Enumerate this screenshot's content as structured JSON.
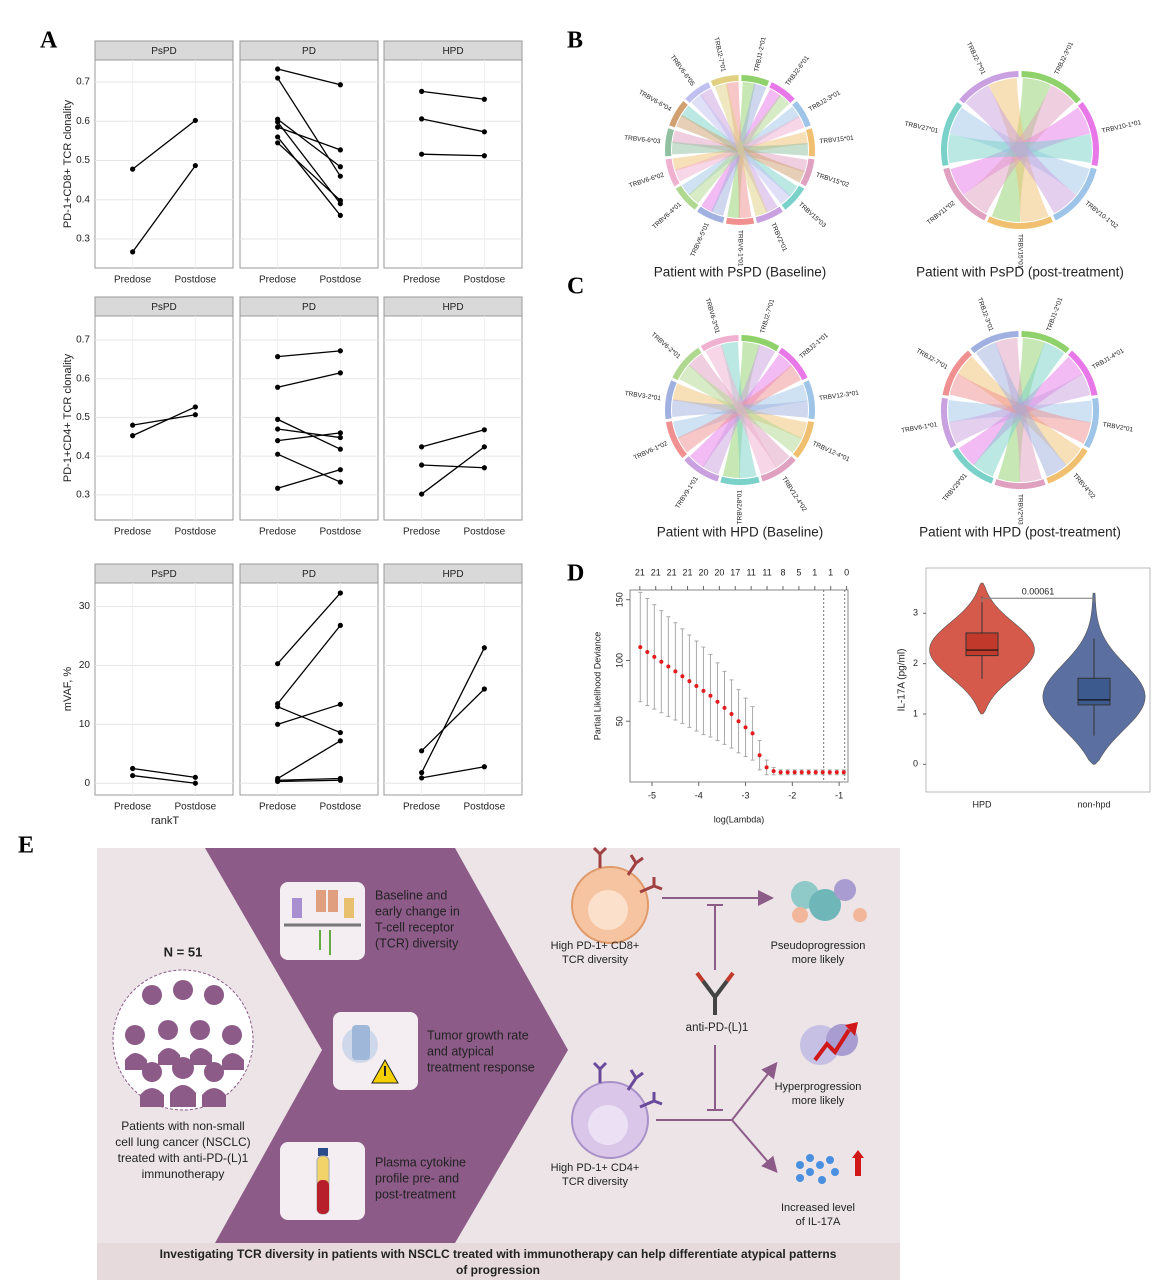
{
  "panels": {
    "a": "A",
    "b": "B",
    "c": "C",
    "d": "D",
    "e": "E"
  },
  "chart_data": [
    {
      "type": "paired-line",
      "ylabel": "PD-1+CD8+ TCR clonality",
      "categories": [
        "Predose",
        "Postdose"
      ],
      "ylim": [
        0.226,
        0.756
      ],
      "yticks": [
        0.3,
        0.4,
        0.5,
        0.6,
        0.7
      ],
      "grid": true,
      "color": "#000000",
      "facets": [
        {
          "title": "PsPD",
          "pairs": [
            [
              0.478,
              0.602
            ],
            [
              0.267,
              0.487
            ]
          ]
        },
        {
          "title": "PD",
          "pairs": [
            [
              0.733,
              0.693
            ],
            [
              0.71,
              0.46
            ],
            [
              0.605,
              0.484
            ],
            [
              0.598,
              0.39
            ],
            [
              0.585,
              0.527
            ],
            [
              0.56,
              0.36
            ],
            [
              0.545,
              0.398
            ]
          ]
        },
        {
          "title": "HPD",
          "pairs": [
            [
              0.676,
              0.656
            ],
            [
              0.606,
              0.573
            ],
            [
              0.516,
              0.512
            ]
          ]
        }
      ]
    },
    {
      "type": "paired-line",
      "ylabel": "PD-1+CD4+ TCR clonality",
      "categories": [
        "Predose",
        "Postdose"
      ],
      "ylim": [
        0.235,
        0.762
      ],
      "yticks": [
        0.3,
        0.4,
        0.5,
        0.6,
        0.7
      ],
      "grid": true,
      "color": "#000000",
      "facets": [
        {
          "title": "PsPD",
          "pairs": [
            [
              0.48,
              0.507
            ],
            [
              0.453,
              0.527
            ]
          ]
        },
        {
          "title": "PD",
          "pairs": [
            [
              0.657,
              0.672
            ],
            [
              0.578,
              0.615
            ],
            [
              0.495,
              0.418
            ],
            [
              0.47,
              0.448
            ],
            [
              0.44,
              0.46
            ],
            [
              0.405,
              0.333
            ],
            [
              0.317,
              0.365
            ]
          ]
        },
        {
          "title": "HPD",
          "pairs": [
            [
              0.424,
              0.468
            ],
            [
              0.377,
              0.37
            ],
            [
              0.302,
              0.424
            ]
          ]
        }
      ]
    },
    {
      "type": "paired-line",
      "ylabel": "mVAF, %",
      "xlabel": "rankT",
      "categories": [
        "Predose",
        "Postdose"
      ],
      "ylim": [
        -2,
        34
      ],
      "yticks": [
        0,
        10,
        20,
        30
      ],
      "grid": true,
      "color": "#000000",
      "facets": [
        {
          "title": "PsPD",
          "pairs": [
            [
              2.5,
              1.0
            ],
            [
              1.3,
              0.0
            ]
          ]
        },
        {
          "title": "PD",
          "pairs": [
            [
              20.3,
              32.3
            ],
            [
              13.5,
              26.8
            ],
            [
              13.0,
              8.6
            ],
            [
              10.0,
              13.4
            ],
            [
              0.8,
              7.2
            ],
            [
              0.5,
              0.8
            ],
            [
              0.3,
              0.5
            ]
          ]
        },
        {
          "title": "HPD",
          "pairs": [
            [
              5.5,
              16.0
            ],
            [
              1.8,
              23.0
            ],
            [
              0.9,
              2.8
            ]
          ]
        }
      ]
    },
    {
      "type": "cv-curve",
      "xlabel": "log(Lambda)",
      "ylabel": "Partial Likelihood Deviance",
      "color": "#e41a1c",
      "x": [
        -5.25,
        -5.1,
        -4.95,
        -4.8,
        -4.65,
        -4.5,
        -4.35,
        -4.2,
        -4.05,
        -3.9,
        -3.75,
        -3.6,
        -3.45,
        -3.3,
        -3.15,
        -3.0,
        -2.85,
        -2.7,
        -2.55,
        -2.4,
        -2.25,
        -2.1,
        -1.95,
        -1.8,
        -1.65,
        -1.5,
        -1.35,
        -1.2,
        -1.05,
        -0.9
      ],
      "values": [
        111,
        107,
        103,
        99,
        95,
        91,
        87,
        83,
        79,
        75,
        71,
        66,
        61,
        56,
        50,
        45,
        40,
        22,
        12,
        9,
        8,
        8,
        8,
        8,
        8,
        8,
        8,
        8,
        8,
        8
      ],
      "errors": [
        45,
        44,
        43,
        42,
        41,
        40,
        39,
        38,
        37,
        36,
        34,
        32,
        30,
        28,
        26,
        24,
        22,
        12,
        6,
        3,
        2,
        2,
        2,
        2,
        2,
        2,
        2,
        2,
        2,
        2
      ],
      "xlim": [
        -5.47,
        -0.81
      ],
      "ylim": [
        0,
        158
      ],
      "xticks": [
        -5,
        -4,
        -3,
        -2,
        -1
      ],
      "yticks": [
        50,
        100,
        150
      ],
      "top_ticks": [
        {
          "value": -5.26,
          "label": "21"
        },
        {
          "value": -4.92,
          "label": "21"
        },
        {
          "value": -4.58,
          "label": "21"
        },
        {
          "value": -4.24,
          "label": "21"
        },
        {
          "value": -3.9,
          "label": "20"
        },
        {
          "value": -3.56,
          "label": "20"
        },
        {
          "value": -3.22,
          "label": "17"
        },
        {
          "value": -2.88,
          "label": "11"
        },
        {
          "value": -2.54,
          "label": "11"
        },
        {
          "value": -2.2,
          "label": "8"
        },
        {
          "value": -1.86,
          "label": "5"
        },
        {
          "value": -1.52,
          "label": "1"
        },
        {
          "value": -1.18,
          "label": "1"
        },
        {
          "value": -0.84,
          "label": "0"
        }
      ],
      "vlines": [
        -1.33,
        -0.88
      ]
    },
    {
      "type": "violin",
      "ylabel": "IL-17A (pg/ml)",
      "categories": [
        "HPD",
        "non-hpd"
      ],
      "colors": [
        "#d65a4b",
        "#5b6fa1"
      ],
      "box_colors": [
        "#c0392b",
        "#3d5a8e"
      ],
      "ylim": [
        -0.55,
        3.9
      ],
      "yticks": [
        0,
        1,
        2,
        3
      ],
      "boxes": [
        {
          "min": 1.0,
          "whisker_low": 1.7,
          "q1": 2.16,
          "median": 2.27,
          "q3": 2.61,
          "whisker_high": 3.33,
          "max": 3.6
        },
        {
          "min": 0.0,
          "whisker_low": 0.57,
          "q1": 1.18,
          "median": 1.28,
          "q3": 1.71,
          "whisker_high": 2.5,
          "max": 3.4
        }
      ],
      "annotation": "0.00061",
      "annotation_y": 3.3
    }
  ],
  "chords": [
    {
      "caption": "Patient with PsPD (Baseline)",
      "labels": [
        "TRBJ1-2*01",
        "TRBJ2-6*01",
        "TRBJ2-3*01",
        "TRBV15*01",
        "TRBV15*02",
        "TRBV15*03",
        "TRBV2*01",
        "TRBV6-1*01",
        "TRBV6-5*01",
        "TRBV6-4*01",
        "TRBV6-6*02",
        "TRBV6-6*03",
        "TRBV6-6*04",
        "TRBV6-6*05",
        "TRBJ2-7*01"
      ]
    },
    {
      "caption": "Patient with PsPD (post-treatment)",
      "labels": [
        "TRBJ2-3*01",
        "TRBV10-1*01",
        "TRBV10-1*02",
        "TRBV15*01",
        "TRBV11*02",
        "TRBV27*01",
        "TRBJ2-7*01"
      ]
    },
    {
      "caption": "Patient with HPD (Baseline)",
      "labels": [
        "TRBJ2-7*01",
        "TRBJ2-1*01",
        "TRBV12-3*01",
        "TRBV12-4*01",
        "TRBV12-4*02",
        "TRBV28*01",
        "TRBV9-1*01",
        "TRBV6-1*02",
        "TRBV3-2*01",
        "TRBV6-2*01",
        "TRBV6-3*01"
      ]
    },
    {
      "caption": "Patient with HPD (post-treatment)",
      "labels": [
        "TRBJ1-2*01",
        "TRBJ1-4*01",
        "TRBV2*01",
        "TRBV4*02",
        "TRBV2*03",
        "TRBV29*01",
        "TRBV6-1*01",
        "TRBJ2-7*01",
        "TRBJ2-3*01"
      ]
    }
  ],
  "abstract": {
    "n": "N = 51",
    "cohort": [
      "Patients with non-small",
      "cell lung cancer (NSCLC)",
      "treated with anti-PD-(L)1",
      "immunotherapy"
    ],
    "items": [
      [
        "Baseline and",
        "early change in",
        "T-cell receptor",
        "(TCR) diversity"
      ],
      [
        "Tumor growth rate",
        "and atypical",
        "treatment response"
      ],
      [
        "Plasma cytokine",
        "profile pre- and",
        "post-treatment"
      ]
    ],
    "cells": [
      [
        "High PD-1+ CD8+",
        "TCR diversity"
      ],
      [
        "High PD-1+ CD4+",
        "TCR diversity"
      ]
    ],
    "drug": "anti-PD-(L)1",
    "outcomes": [
      [
        "Pseudoprogression",
        "more likely"
      ],
      [
        "Hyperprogression",
        "more likely"
      ],
      [
        "Increased level",
        "of IL-17A"
      ]
    ],
    "conclusion": [
      "Investigating TCR diversity in patients with NSCLC treated with immunotherapy can help differentiate atypical patterns",
      "of progression"
    ]
  }
}
